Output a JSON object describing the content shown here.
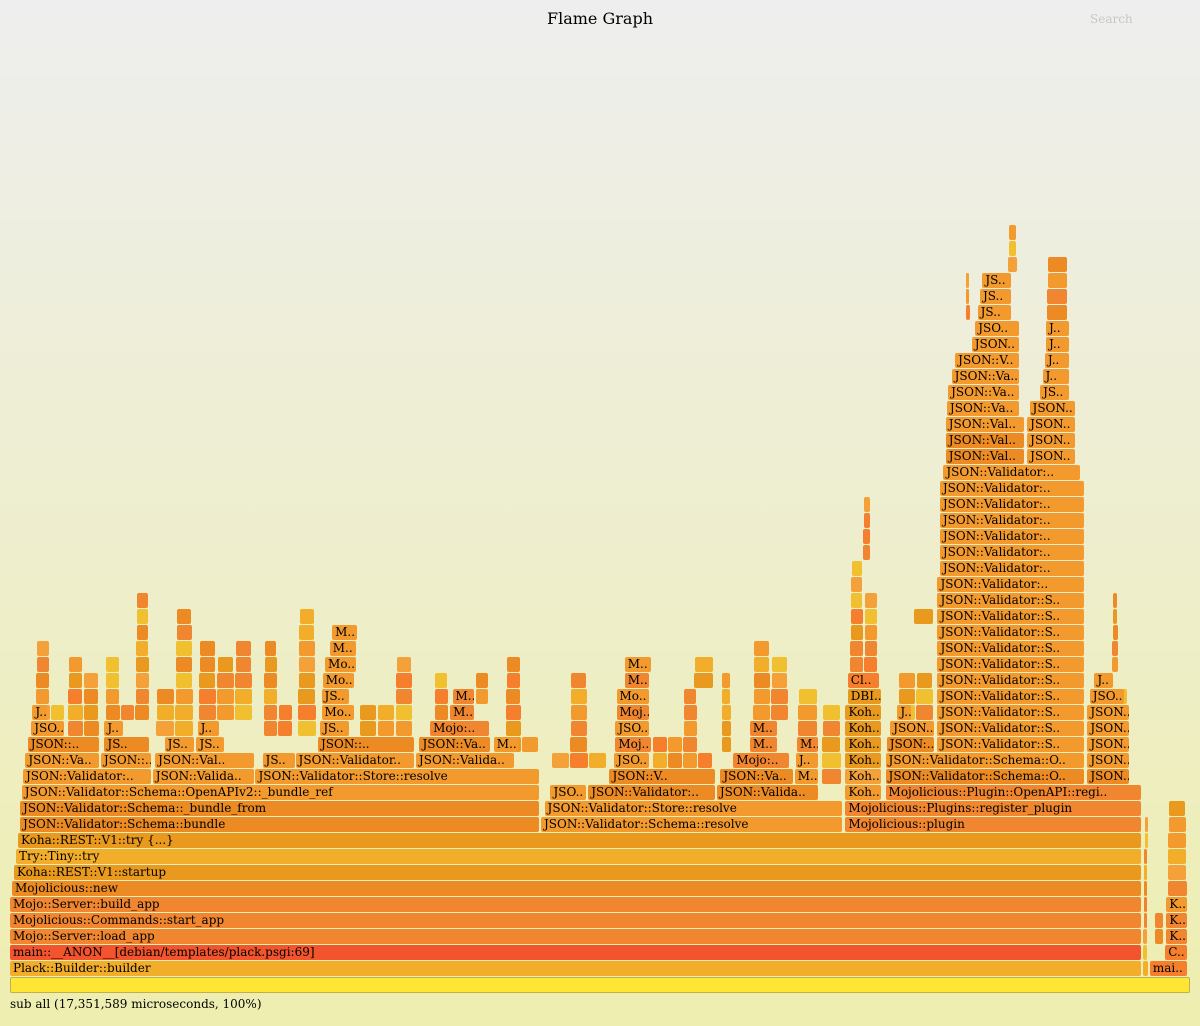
{
  "title": "Flame Graph",
  "search_label": "Search",
  "footer": "sub all (17,351,589 microseconds, 100%)",
  "palette": [
    "#f39a2e",
    "#ec8b23",
    "#f2ae2a",
    "#f0862f",
    "#f4a13a",
    "#e99a1e",
    "#f57f2c",
    "#f0c030"
  ],
  "chart_data": {
    "type": "flamegraph",
    "title": "Flame Graph",
    "total_microseconds": 17351589,
    "units": "percent of total time; depth = stack depth",
    "root": {
      "label": "all",
      "start": 0,
      "end": 100
    },
    "frames": [
      [
        1,
        0,
        95.9,
        "Plack::Builder::builder",
        2
      ],
      [
        1,
        96.6,
        99.8,
        "mai..",
        6
      ],
      [
        2,
        0,
        95.9,
        "main::__ANON__[debian/templates/plack.psgi:69]",
        -1
      ],
      [
        2,
        97.9,
        99.8,
        "C..",
        6
      ],
      [
        3,
        0,
        95.9,
        "Mojo::Server::load_app",
        3
      ],
      [
        3,
        98.0,
        99.8,
        "K..",
        3
      ],
      [
        4,
        0,
        95.9,
        "Mojolicious::Commands::start_app",
        3
      ],
      [
        4,
        98.0,
        99.8,
        "K..",
        3
      ],
      [
        5,
        0,
        95.9,
        "Mojo::Server::build_app",
        3
      ],
      [
        5,
        98.0,
        99.8,
        "K..",
        0
      ],
      [
        6,
        0.17,
        95.9,
        "Mojolicious::new",
        1
      ],
      [
        7,
        0.34,
        95.9,
        "Koha::REST::V1::startup",
        5
      ],
      [
        8,
        0.51,
        95.9,
        "Try::Tiny::try",
        2
      ],
      [
        9,
        0.68,
        95.9,
        "Koha::REST::V1::try {...}",
        5
      ],
      [
        10,
        0.85,
        44.9,
        "JSON::Validator::Schema::bundle",
        1
      ],
      [
        10,
        45.0,
        70.6,
        "JSON::Validator::Schema::resolve",
        0
      ],
      [
        10,
        70.8,
        95.9,
        "Mojolicious::plugin",
        3
      ],
      [
        11,
        0.85,
        44.9,
        "JSON::Validator::Schema::_bundle_from",
        1
      ],
      [
        11,
        45.3,
        70.6,
        "JSON::Validator::Store::resolve",
        0
      ],
      [
        11,
        70.8,
        95.9,
        "Mojolicious::Plugins::register_plugin",
        3
      ],
      [
        12,
        1.0,
        44.9,
        "JSON::Validator::Schema::OpenAPIv2::_bundle_ref",
        0
      ],
      [
        12,
        45.8,
        48.9,
        "JSO..",
        0
      ],
      [
        12,
        49.0,
        59.8,
        "JSON::Validator:..",
        1
      ],
      [
        12,
        59.9,
        68.6,
        "JSON::Valida..",
        1
      ],
      [
        12,
        70.8,
        73.9,
        "Koh..",
        0
      ],
      [
        12,
        74.2,
        95.9,
        "Mojolicious::Plugin::OpenAPI::regi..",
        3
      ],
      [
        13,
        1.1,
        12.0,
        "JSON::Validator:..",
        0
      ],
      [
        13,
        12.1,
        20.8,
        "JSON::Valida..",
        0
      ],
      [
        13,
        20.8,
        44.9,
        "JSON::Validator::Store::resolve",
        0
      ],
      [
        13,
        50.8,
        59.8,
        "JSON::V..",
        1
      ],
      [
        13,
        60.2,
        66.4,
        "JSON::Va..",
        1
      ],
      [
        13,
        66.5,
        68.6,
        "M..",
        0
      ],
      [
        13,
        70.8,
        73.9,
        "Koh..",
        4
      ],
      [
        13,
        74.2,
        91.1,
        "JSON::Validator::Schema::O..",
        1
      ],
      [
        13,
        91.3,
        94.9,
        "JSON..",
        1
      ],
      [
        14,
        1.3,
        7.6,
        "JSON::Va..",
        0
      ],
      [
        14,
        7.7,
        12.0,
        "JSON::..",
        0
      ],
      [
        14,
        12.3,
        20.8,
        "JSON::Val..",
        0
      ],
      [
        14,
        21.4,
        24.2,
        "JS..",
        0
      ],
      [
        14,
        24.2,
        34.3,
        "JSON::Validator..",
        0
      ],
      [
        14,
        34.4,
        42.8,
        "JSON::Valida..",
        0
      ],
      [
        14,
        51.2,
        54.2,
        "JSO..",
        0
      ],
      [
        14,
        61.3,
        66.1,
        "Mojo:..",
        3
      ],
      [
        14,
        66.6,
        68.6,
        "J..",
        0
      ],
      [
        14,
        70.8,
        73.9,
        "Koh..",
        5
      ],
      [
        14,
        74.2,
        91.1,
        "JSON::Validator::Schema::O..",
        0
      ],
      [
        14,
        91.3,
        94.9,
        "JSON..",
        0
      ],
      [
        15,
        1.5,
        7.6,
        "JSON::..",
        1
      ],
      [
        15,
        8.0,
        11.9,
        "JS..",
        1
      ],
      [
        15,
        13.1,
        15.7,
        "JS..",
        0
      ],
      [
        15,
        15.8,
        18.2,
        "JS..",
        0
      ],
      [
        15,
        26.1,
        34.3,
        "JSON::..",
        1
      ],
      [
        15,
        34.7,
        40.8,
        "JSON::Va..",
        1
      ],
      [
        15,
        41.0,
        43.1,
        "M..",
        0
      ],
      [
        15,
        51.3,
        54.4,
        "Moj..",
        3
      ],
      [
        15,
        62.7,
        65.1,
        "M..",
        3
      ],
      [
        15,
        66.7,
        68.6,
        "M..",
        3
      ],
      [
        15,
        70.8,
        73.9,
        "Koh..",
        5
      ],
      [
        15,
        74.3,
        78.4,
        "JSON:..",
        1
      ],
      [
        15,
        78.6,
        91.1,
        "JSON::Validator::S..",
        0
      ],
      [
        15,
        91.3,
        94.9,
        "JSON..",
        0
      ],
      [
        16,
        1.8,
        4.7,
        "JSO..",
        0
      ],
      [
        16,
        8.0,
        9.7,
        "J..",
        0
      ],
      [
        16,
        15.9,
        17.8,
        "J..",
        0
      ],
      [
        16,
        26.3,
        28.8,
        "JS..",
        0
      ],
      [
        16,
        35.6,
        40.7,
        "Mojo:..",
        3
      ],
      [
        16,
        51.3,
        54.2,
        "JSO..",
        0
      ],
      [
        16,
        62.7,
        65.1,
        "M..",
        3
      ],
      [
        16,
        70.8,
        73.9,
        "Koh..",
        5
      ],
      [
        16,
        74.6,
        78.4,
        "JSON..",
        0
      ],
      [
        16,
        78.6,
        91.1,
        "JSON::Validator::S..",
        0
      ],
      [
        16,
        91.3,
        94.9,
        "JSON..",
        0
      ],
      [
        17,
        1.9,
        3.2,
        "J..",
        0
      ],
      [
        17,
        26.4,
        29.2,
        "Mo..",
        0
      ],
      [
        17,
        37.3,
        39.4,
        "M..",
        3
      ],
      [
        17,
        51.4,
        54.2,
        "Moj..",
        3
      ],
      [
        17,
        70.8,
        73.9,
        "Koh..",
        5
      ],
      [
        17,
        75.2,
        76.4,
        "J..",
        0
      ],
      [
        17,
        78.6,
        91.1,
        "JSON::Validator::S..",
        0
      ],
      [
        17,
        91.3,
        94.9,
        "JSON..",
        0
      ],
      [
        18,
        26.4,
        28.8,
        "JS..",
        0
      ],
      [
        18,
        37.5,
        39.4,
        "M..",
        3
      ],
      [
        18,
        51.4,
        54.2,
        "Mo..",
        0
      ],
      [
        18,
        71.0,
        73.9,
        "DBI..",
        5
      ],
      [
        18,
        78.6,
        91.1,
        "JSON::Validator::S..",
        0
      ],
      [
        18,
        91.5,
        94.5,
        "JSO..",
        0
      ],
      [
        19,
        26.5,
        29.2,
        "Mo..",
        0
      ],
      [
        19,
        52.1,
        54.2,
        "M..",
        3
      ],
      [
        19,
        71.0,
        73.7,
        "Cl..",
        6
      ],
      [
        19,
        78.6,
        91.1,
        "JSON::Validator::S..",
        0
      ],
      [
        19,
        91.9,
        93.6,
        "J..",
        0
      ],
      [
        20,
        26.7,
        29.4,
        "Mo..",
        0
      ],
      [
        20,
        52.1,
        54.4,
        "M..",
        0
      ],
      [
        20,
        78.6,
        91.1,
        "JSON::Validator::S..",
        0
      ],
      [
        21,
        27.1,
        29.4,
        "M..",
        0
      ],
      [
        21,
        78.6,
        91.1,
        "JSON::Validator::S..",
        0
      ],
      [
        22,
        27.3,
        29.5,
        "M..",
        0
      ],
      [
        22,
        78.6,
        91.1,
        "JSON::Validator::S..",
        0
      ],
      [
        23,
        78.6,
        91.1,
        "JSON::Validator::S..",
        0
      ],
      [
        24,
        78.6,
        91.1,
        "JSON::Validator::S..",
        0
      ],
      [
        25,
        78.6,
        91.1,
        "JSON::Validator:..",
        0
      ],
      [
        26,
        78.8,
        91.1,
        "JSON::Validator:..",
        0
      ],
      [
        27,
        78.8,
        91.1,
        "JSON::Validator:..",
        0
      ],
      [
        28,
        78.8,
        91.1,
        "JSON::Validator:..",
        0
      ],
      [
        29,
        78.8,
        91.1,
        "JSON::Validator:..",
        0
      ],
      [
        30,
        78.8,
        91.1,
        "JSON::Validator:..",
        0
      ],
      [
        31,
        78.8,
        91.1,
        "JSON::Validator:..",
        0
      ],
      [
        32,
        79.1,
        90.8,
        "JSON::Validator:..",
        0
      ],
      [
        33,
        79.3,
        86.0,
        "JSON::Val..",
        1
      ],
      [
        33,
        86.2,
        90.3,
        "JSON..",
        0
      ],
      [
        34,
        79.3,
        86.0,
        "JSON::Val..",
        1
      ],
      [
        34,
        86.2,
        90.3,
        "JSON..",
        0
      ],
      [
        35,
        79.3,
        86.0,
        "JSON::Val..",
        0
      ],
      [
        35,
        86.2,
        90.3,
        "JSON..",
        0
      ],
      [
        36,
        79.4,
        85.6,
        "JSON::Va..",
        0
      ],
      [
        36,
        86.4,
        90.3,
        "JSON..",
        0
      ],
      [
        37,
        79.5,
        85.6,
        "JSON::Va..",
        0
      ],
      [
        37,
        87.3,
        89.8,
        "JS..",
        0
      ],
      [
        38,
        79.8,
        85.6,
        "JSON::Va..",
        0
      ],
      [
        38,
        87.5,
        89.8,
        "J..",
        0
      ],
      [
        39,
        80.1,
        85.6,
        "JSON::V..",
        0
      ],
      [
        39,
        87.7,
        89.8,
        "J..",
        0
      ],
      [
        40,
        81.5,
        85.6,
        "JSON..",
        0
      ],
      [
        40,
        87.8,
        89.8,
        "J..",
        0
      ],
      [
        41,
        81.8,
        85.6,
        "JSO..",
        0
      ],
      [
        41,
        87.8,
        89.8,
        "J..",
        0
      ],
      [
        42,
        82.0,
        84.9,
        "JS..",
        0
      ],
      [
        43,
        82.2,
        84.9,
        "JS..",
        0
      ],
      [
        44,
        82.4,
        84.9,
        "JS..",
        0
      ]
    ],
    "unlabeled_towers": [
      [
        2.2,
        4.7,
        17,
        25
      ],
      [
        4.9,
        7.6,
        16,
        22
      ],
      [
        8.1,
        11.9,
        17,
        24
      ],
      [
        12.4,
        15.6,
        16,
        25
      ],
      [
        16.0,
        20.6,
        17,
        23
      ],
      [
        21.5,
        24.0,
        16,
        21
      ],
      [
        24.4,
        26.0,
        16,
        23
      ],
      [
        29.6,
        34.2,
        15,
        24
      ],
      [
        36.0,
        37.2,
        17,
        22
      ],
      [
        39.5,
        40.6,
        18,
        24
      ],
      [
        42.0,
        44.8,
        15,
        22
      ],
      [
        45.9,
        50.6,
        14,
        20
      ],
      [
        54.5,
        59.6,
        14,
        21
      ],
      [
        58.0,
        59.7,
        19,
        22
      ],
      [
        60.3,
        61.2,
        15,
        19
      ],
      [
        63.0,
        66.0,
        17,
        21
      ],
      [
        66.8,
        68.5,
        16,
        20
      ],
      [
        68.8,
        70.5,
        13,
        19
      ],
      [
        71.2,
        73.6,
        20,
        26
      ],
      [
        72.3,
        73.0,
        27,
        32
      ],
      [
        75.3,
        78.3,
        17,
        22
      ],
      [
        76.6,
        78.3,
        23,
        25
      ],
      [
        92.0,
        94.8,
        17,
        22
      ],
      [
        93.4,
        94.0,
        20,
        28
      ],
      [
        96.0,
        96.5,
        1,
        13
      ],
      [
        97.0,
        97.8,
        3,
        16
      ],
      [
        98.1,
        99.8,
        6,
        27
      ],
      [
        84.6,
        85.4,
        45,
        49
      ],
      [
        87.9,
        89.7,
        42,
        49
      ],
      [
        81.0,
        81.4,
        42,
        45
      ]
    ]
  }
}
